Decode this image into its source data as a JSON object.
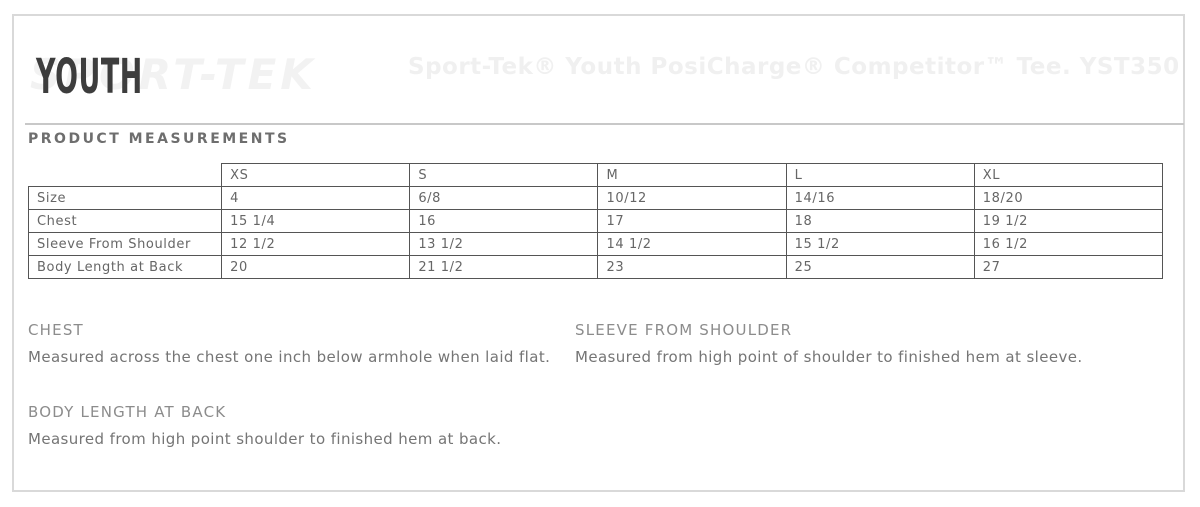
{
  "header": {
    "category_label": "YOUTH",
    "brand_watermark": "SPORT-TEK",
    "product_title": "Sport-Tek® Youth PosiCharge® Competitor™ Tee. YST350"
  },
  "section": {
    "heading": "PRODUCT MEASUREMENTS"
  },
  "measurements_table": {
    "columns": [
      "XS",
      "S",
      "M",
      "L",
      "XL"
    ],
    "rows": [
      {
        "label": "Size",
        "values": [
          "4",
          "6/8",
          "10/12",
          "14/16",
          "18/20"
        ]
      },
      {
        "label": "Chest",
        "values": [
          "15 1/4",
          "16",
          "17",
          "18",
          "19 1/2"
        ]
      },
      {
        "label": "Sleeve From Shoulder",
        "values": [
          "12 1/2",
          "13 1/2",
          "14 1/2",
          "15 1/2",
          "16 1/2"
        ]
      },
      {
        "label": "Body Length at Back",
        "values": [
          "20",
          "21 1/2",
          "23",
          "25",
          "27"
        ]
      }
    ]
  },
  "definitions": [
    {
      "term": "CHEST",
      "description": "Measured across the chest one inch below armhole when laid flat."
    },
    {
      "term": "SLEEVE FROM SHOULDER",
      "description": "Measured from high point of shoulder to finished hem at sleeve."
    },
    {
      "term": "BODY LENGTH AT BACK",
      "description": "Measured from high point shoulder to finished hem at back."
    }
  ],
  "colors": {
    "category_text": "#3d3d3d",
    "table_border": "#555555",
    "table_text": "#666666",
    "frame_border": "#d9d9d9",
    "watermark_text": "#f1f1f1",
    "heading_text": "#6e6e6e"
  }
}
